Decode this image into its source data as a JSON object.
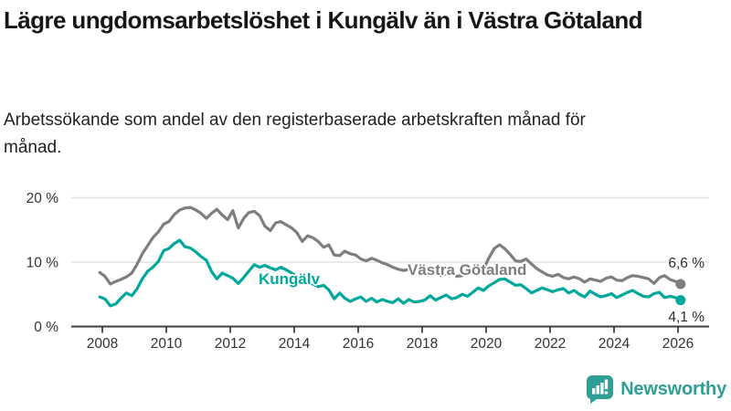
{
  "header": {
    "title": "Lägre ungdomsarbetslöshet i Kungälv än i Västra Götaland",
    "subtitle": "Arbetssökande som andel av den registerbaserade arbetskraften månad för månad."
  },
  "footer": {
    "brand": "Newsworthy",
    "logo_icon": "bar-chart-speech-bubble-icon",
    "brand_color": "#2f9e96"
  },
  "chart_data": {
    "type": "line",
    "title": "",
    "xlabel": "",
    "ylabel": "",
    "unit": "%",
    "grid": true,
    "legend_position": "inline-labels",
    "x_range": [
      2007.8,
      2026.6
    ],
    "y_range": [
      0,
      21
    ],
    "x_ticks": [
      {
        "value": 2008,
        "label": "2008"
      },
      {
        "value": 2010,
        "label": "2010"
      },
      {
        "value": 2012,
        "label": "2012"
      },
      {
        "value": 2014,
        "label": "2014"
      },
      {
        "value": 2016,
        "label": "2016"
      },
      {
        "value": 2018,
        "label": "2018"
      },
      {
        "value": 2020,
        "label": "2020"
      },
      {
        "value": 2022,
        "label": "2022"
      },
      {
        "value": 2024,
        "label": "2024"
      },
      {
        "value": 2026,
        "label": "2026"
      }
    ],
    "y_ticks": [
      {
        "value": 0,
        "label": "0 %"
      },
      {
        "value": 10,
        "label": "10 %"
      },
      {
        "value": 20,
        "label": "20 %"
      }
    ],
    "axis_color": "#3d3d3d",
    "grid_color": "#e2e2e2",
    "tick_text_color": "#333333",
    "x": [
      2007.92,
      2008.08,
      2008.25,
      2008.42,
      2008.58,
      2008.75,
      2008.92,
      2009.08,
      2009.25,
      2009.42,
      2009.58,
      2009.75,
      2009.92,
      2010.08,
      2010.25,
      2010.42,
      2010.58,
      2010.75,
      2010.92,
      2011.08,
      2011.25,
      2011.42,
      2011.58,
      2011.75,
      2011.92,
      2012.08,
      2012.25,
      2012.42,
      2012.58,
      2012.75,
      2012.92,
      2013.08,
      2013.25,
      2013.42,
      2013.58,
      2013.75,
      2013.92,
      2014.08,
      2014.25,
      2014.42,
      2014.58,
      2014.75,
      2014.92,
      2015.08,
      2015.25,
      2015.42,
      2015.58,
      2015.75,
      2015.92,
      2016.08,
      2016.25,
      2016.42,
      2016.58,
      2016.75,
      2016.92,
      2017.08,
      2017.25,
      2017.42,
      2017.58,
      2017.75,
      2017.92,
      2018.08,
      2018.25,
      2018.42,
      2018.58,
      2018.75,
      2018.92,
      2019.08,
      2019.25,
      2019.42,
      2019.58,
      2019.75,
      2019.92,
      2020.08,
      2020.25,
      2020.42,
      2020.58,
      2020.75,
      2020.92,
      2021.08,
      2021.25,
      2021.42,
      2021.58,
      2021.75,
      2021.92,
      2022.08,
      2022.25,
      2022.42,
      2022.58,
      2022.75,
      2022.92,
      2023.08,
      2023.25,
      2023.42,
      2023.58,
      2023.75,
      2023.92,
      2024.08,
      2024.25,
      2024.42,
      2024.58,
      2024.75,
      2024.92,
      2025.08,
      2025.25,
      2025.42,
      2025.58,
      2025.75,
      2025.92,
      2026.08
    ],
    "series": [
      {
        "name": "Västra Götaland",
        "color": "#7e7e7e",
        "end_label": "6,6 %",
        "end_value": 6.6,
        "values": [
          8.4,
          7.8,
          6.6,
          7.0,
          7.3,
          7.7,
          8.3,
          9.6,
          11.3,
          12.6,
          13.8,
          14.7,
          15.9,
          16.3,
          17.4,
          18.1,
          18.4,
          18.5,
          18.1,
          17.6,
          16.8,
          17.6,
          18.2,
          17.3,
          16.6,
          18.0,
          15.3,
          16.8,
          17.7,
          17.9,
          17.2,
          15.6,
          14.9,
          16.1,
          16.3,
          15.8,
          15.3,
          14.6,
          13.2,
          14.1,
          13.8,
          13.2,
          12.3,
          12.7,
          11.1,
          11.0,
          11.7,
          11.3,
          11.1,
          10.5,
          10.2,
          10.6,
          10.3,
          9.9,
          9.6,
          9.2,
          8.9,
          8.7,
          8.9,
          9.0,
          8.3,
          8.1,
          8.7,
          8.2,
          7.9,
          8.2,
          8.4,
          7.8,
          7.9,
          8.2,
          8.4,
          8.6,
          8.9,
          10.6,
          12.1,
          12.7,
          12.1,
          11.2,
          10.2,
          10.1,
          10.5,
          9.7,
          9.0,
          8.5,
          8.0,
          7.8,
          8.1,
          7.6,
          7.4,
          7.7,
          7.4,
          6.9,
          7.4,
          7.2,
          7.0,
          7.5,
          7.7,
          7.2,
          7.1,
          7.6,
          7.9,
          7.8,
          7.6,
          7.4,
          6.7,
          7.6,
          7.9,
          7.3,
          7.0,
          6.6
        ]
      },
      {
        "name": "Kungälv",
        "color": "#00a79b",
        "end_label": "4,1 %",
        "end_value": 4.1,
        "values": [
          4.6,
          4.3,
          3.2,
          3.5,
          4.4,
          5.2,
          4.8,
          5.8,
          7.4,
          8.6,
          9.2,
          10.1,
          11.8,
          12.1,
          12.9,
          13.4,
          12.4,
          12.2,
          11.6,
          10.9,
          10.3,
          8.5,
          7.4,
          8.3,
          7.9,
          7.5,
          6.7,
          7.6,
          8.6,
          9.6,
          9.2,
          9.5,
          9.1,
          8.8,
          9.2,
          8.8,
          8.3,
          7.8,
          7.3,
          6.9,
          6.6,
          6.2,
          6.4,
          5.7,
          4.3,
          5.2,
          4.4,
          3.9,
          4.3,
          4.6,
          3.9,
          4.4,
          3.8,
          4.2,
          3.9,
          3.7,
          4.3,
          3.6,
          4.2,
          3.8,
          3.9,
          4.1,
          4.8,
          4.1,
          4.5,
          4.9,
          4.3,
          4.5,
          5.0,
          4.7,
          5.3,
          6.0,
          5.6,
          6.3,
          6.8,
          7.3,
          7.4,
          6.9,
          6.4,
          6.5,
          5.9,
          5.2,
          5.6,
          6.0,
          5.7,
          5.4,
          5.7,
          5.9,
          5.2,
          5.6,
          5.0,
          4.6,
          5.5,
          5.0,
          4.6,
          4.8,
          5.1,
          4.5,
          4.9,
          5.3,
          5.6,
          5.1,
          4.7,
          4.6,
          5.1,
          5.3,
          4.5,
          4.7,
          4.5,
          4.1
        ]
      }
    ]
  }
}
